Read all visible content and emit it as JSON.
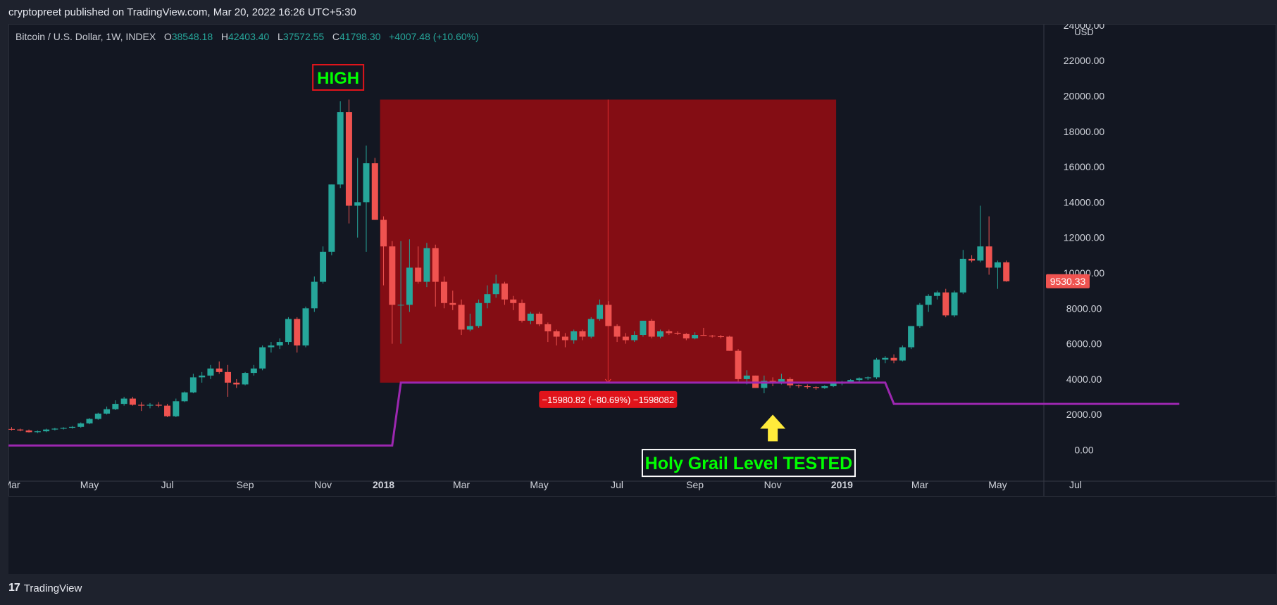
{
  "header": {
    "publisher_line": "cryptopreet published on TradingView.com, Mar 20, 2022 16:26 UTC+5:30"
  },
  "footer": {
    "brand_logo": "17",
    "brand": "TradingView"
  },
  "symbol": {
    "name": "Bitcoin / U.S. Dollar, 1W, INDEX",
    "o_label": "O",
    "o": "38548.18",
    "h_label": "H",
    "h": "42403.40",
    "l_label": "L",
    "l": "37572.55",
    "c_label": "C",
    "c": "41798.30",
    "change": "+4007.48 (+10.60%)"
  },
  "colors": {
    "background": "#131722",
    "up": "#26a69a",
    "down": "#ef5350",
    "zone": "#8e0d14",
    "support_line": "#9c27b0",
    "label_green": "#00ff00",
    "arrow_yellow": "#ffeb3b",
    "price_tag": "#ef5350"
  },
  "chart_data": {
    "type": "candlestick",
    "title": "",
    "currency": "USD",
    "ylim": [
      -1500,
      24000
    ],
    "y_ticks": [
      "24000.00",
      "22000.00",
      "20000.00",
      "18000.00",
      "16000.00",
      "14000.00",
      "12000.00",
      "10000.00",
      "8000.00",
      "6000.00",
      "4000.00",
      "2000.00",
      "0.00"
    ],
    "x_ticks": [
      {
        "label": "Mar",
        "bold": false,
        "at": 0
      },
      {
        "label": "May",
        "bold": false,
        "at": 9
      },
      {
        "label": "Jul",
        "bold": false,
        "at": 18
      },
      {
        "label": "Sep",
        "bold": false,
        "at": 27
      },
      {
        "label": "Nov",
        "bold": false,
        "at": 36
      },
      {
        "label": "2018",
        "bold": true,
        "at": 43
      },
      {
        "label": "Mar",
        "bold": false,
        "at": 52
      },
      {
        "label": "May",
        "bold": false,
        "at": 61
      },
      {
        "label": "Jul",
        "bold": false,
        "at": 70
      },
      {
        "label": "Sep",
        "bold": false,
        "at": 79
      },
      {
        "label": "Nov",
        "bold": false,
        "at": 88
      },
      {
        "label": "2019",
        "bold": true,
        "at": 96
      },
      {
        "label": "Mar",
        "bold": false,
        "at": 105
      },
      {
        "label": "May",
        "bold": false,
        "at": 114
      },
      {
        "label": "Jul",
        "bold": false,
        "at": 123
      }
    ],
    "candles": [
      [
        1180,
        1280,
        1100,
        1150
      ],
      [
        1150,
        1200,
        1050,
        1100
      ],
      [
        1100,
        1150,
        980,
        1000
      ],
      [
        1000,
        1100,
        950,
        1050
      ],
      [
        1050,
        1200,
        1000,
        1150
      ],
      [
        1150,
        1250,
        1100,
        1200
      ],
      [
        1200,
        1280,
        1150,
        1250
      ],
      [
        1250,
        1350,
        1200,
        1300
      ],
      [
        1300,
        1550,
        1250,
        1500
      ],
      [
        1500,
        1800,
        1450,
        1750
      ],
      [
        1750,
        2100,
        1700,
        2050
      ],
      [
        2050,
        2450,
        2000,
        2300
      ],
      [
        2300,
        2800,
        2250,
        2600
      ],
      [
        2600,
        3000,
        2500,
        2900
      ],
      [
        2900,
        3000,
        2500,
        2550
      ],
      [
        2550,
        2700,
        2200,
        2500
      ],
      [
        2500,
        2650,
        2350,
        2550
      ],
      [
        2550,
        2700,
        2400,
        2500
      ],
      [
        2500,
        2600,
        1850,
        1900
      ],
      [
        1900,
        2900,
        1850,
        2750
      ],
      [
        2750,
        3300,
        2700,
        3250
      ],
      [
        3250,
        4300,
        3200,
        4100
      ],
      [
        4100,
        4400,
        3800,
        4200
      ],
      [
        4200,
        4800,
        4000,
        4600
      ],
      [
        4600,
        5000,
        4300,
        4400
      ],
      [
        4400,
        4800,
        3000,
        3800
      ],
      [
        3800,
        4000,
        3500,
        3700
      ],
      [
        3700,
        4400,
        3650,
        4350
      ],
      [
        4350,
        4800,
        4200,
        4600
      ],
      [
        4600,
        5900,
        4500,
        5800
      ],
      [
        5800,
        6100,
        5500,
        5900
      ],
      [
        5900,
        6300,
        5700,
        6100
      ],
      [
        6100,
        7500,
        5950,
        7400
      ],
      [
        7400,
        7500,
        5500,
        5900
      ],
      [
        5900,
        8100,
        5800,
        8000
      ],
      [
        8000,
        9800,
        7800,
        9500
      ],
      [
        9500,
        11500,
        9400,
        11200
      ],
      [
        11200,
        15000,
        11000,
        15000
      ],
      [
        15000,
        19700,
        14800,
        19100
      ],
      [
        19100,
        19800,
        12800,
        13800
      ],
      [
        13800,
        16500,
        12000,
        14000
      ],
      [
        14000,
        17200,
        11200,
        16200
      ],
      [
        16200,
        16500,
        13000,
        13000
      ],
      [
        13000,
        13200,
        9300,
        11500
      ],
      [
        11500,
        11800,
        6000,
        8200
      ],
      [
        8200,
        11800,
        6000,
        8200
      ],
      [
        8200,
        11900,
        7800,
        10300
      ],
      [
        10300,
        11500,
        9400,
        9500
      ],
      [
        9500,
        11700,
        9200,
        11400
      ],
      [
        11400,
        11600,
        8100,
        9500
      ],
      [
        9500,
        9800,
        8000,
        8300
      ],
      [
        8300,
        9000,
        7900,
        8200
      ],
      [
        8200,
        8500,
        6500,
        6800
      ],
      [
        6800,
        7700,
        6700,
        7000
      ],
      [
        7000,
        8500,
        6900,
        8300
      ],
      [
        8300,
        9300,
        8000,
        8800
      ],
      [
        8800,
        9900,
        8600,
        9400
      ],
      [
        9400,
        9500,
        8200,
        8500
      ],
      [
        8500,
        8700,
        7900,
        8300
      ],
      [
        8300,
        8500,
        7200,
        7300
      ],
      [
        7300,
        7800,
        7100,
        7700
      ],
      [
        7700,
        7800,
        7000,
        7100
      ],
      [
        7100,
        7200,
        6100,
        6700
      ],
      [
        6700,
        6800,
        5900,
        6400
      ],
      [
        6400,
        6600,
        5800,
        6200
      ],
      [
        6200,
        6800,
        6000,
        6700
      ],
      [
        6700,
        6800,
        6200,
        6400
      ],
      [
        6400,
        7500,
        6300,
        7400
      ],
      [
        7400,
        8500,
        7300,
        8200
      ],
      [
        8200,
        8400,
        7000,
        7000
      ],
      [
        7000,
        7100,
        6100,
        6400
      ],
      [
        6400,
        6600,
        6000,
        6200
      ],
      [
        6200,
        6700,
        6100,
        6500
      ],
      [
        6500,
        7300,
        6400,
        7300
      ],
      [
        7300,
        7400,
        6300,
        6400
      ],
      [
        6400,
        6800,
        6300,
        6700
      ],
      [
        6700,
        6800,
        6500,
        6600
      ],
      [
        6600,
        6700,
        6500,
        6550
      ],
      [
        6550,
        6600,
        6200,
        6300
      ],
      [
        6300,
        6650,
        6250,
        6500
      ],
      [
        6500,
        6900,
        6450,
        6450
      ],
      [
        6450,
        6500,
        6350,
        6420
      ],
      [
        6420,
        6500,
        6300,
        6400
      ],
      [
        6400,
        6450,
        5600,
        5600
      ],
      [
        5600,
        5700,
        3800,
        4000
      ],
      [
        4000,
        4500,
        3700,
        4200
      ],
      [
        4200,
        4200,
        3500,
        3500
      ],
      [
        3500,
        4200,
        3200,
        3900
      ],
      [
        3900,
        4100,
        3600,
        3800
      ],
      [
        3800,
        4300,
        3700,
        4000
      ],
      [
        4000,
        4100,
        3500,
        3650
      ],
      [
        3650,
        3700,
        3500,
        3600
      ],
      [
        3600,
        3700,
        3450,
        3550
      ],
      [
        3550,
        3600,
        3400,
        3500
      ],
      [
        3500,
        3650,
        3450,
        3600
      ],
      [
        3600,
        3800,
        3550,
        3750
      ],
      [
        3750,
        3900,
        3650,
        3850
      ],
      [
        3850,
        4000,
        3800,
        3950
      ],
      [
        3950,
        4100,
        3850,
        4050
      ],
      [
        4050,
        4150,
        3950,
        4100
      ],
      [
        4100,
        5200,
        4000,
        5100
      ],
      [
        5100,
        5300,
        4900,
        5200
      ],
      [
        5200,
        5400,
        4900,
        5050
      ],
      [
        5050,
        5900,
        5000,
        5800
      ],
      [
        5800,
        7000,
        5700,
        7000
      ],
      [
        7000,
        8300,
        6900,
        8200
      ],
      [
        8200,
        8800,
        7800,
        8700
      ],
      [
        8700,
        9000,
        8500,
        8900
      ],
      [
        8900,
        9100,
        7500,
        7600
      ],
      [
        7600,
        9000,
        7500,
        8900
      ],
      [
        8900,
        11300,
        8800,
        10800
      ],
      [
        10800,
        11000,
        10600,
        10700
      ],
      [
        10700,
        13800,
        10600,
        11500
      ],
      [
        11500,
        13200,
        9900,
        10300
      ],
      [
        10300,
        10700,
        9100,
        10600
      ],
      [
        10600,
        10700,
        9500,
        9530
      ]
    ],
    "drawdown_zone": {
      "start": 43,
      "end": 95,
      "top": 19800,
      "bottom": 3800,
      "label": "−15980.82 (−80.69%) −1598082"
    },
    "support_line": [
      [
        -1,
        250
      ],
      [
        44,
        250
      ],
      [
        45,
        3800
      ],
      [
        101,
        3800
      ],
      [
        102,
        2600
      ],
      [
        135,
        2600
      ]
    ],
    "annotations": {
      "high": "HIGH",
      "tested": "Holy Grail Level TESTED"
    },
    "last_price": "9530.33"
  }
}
